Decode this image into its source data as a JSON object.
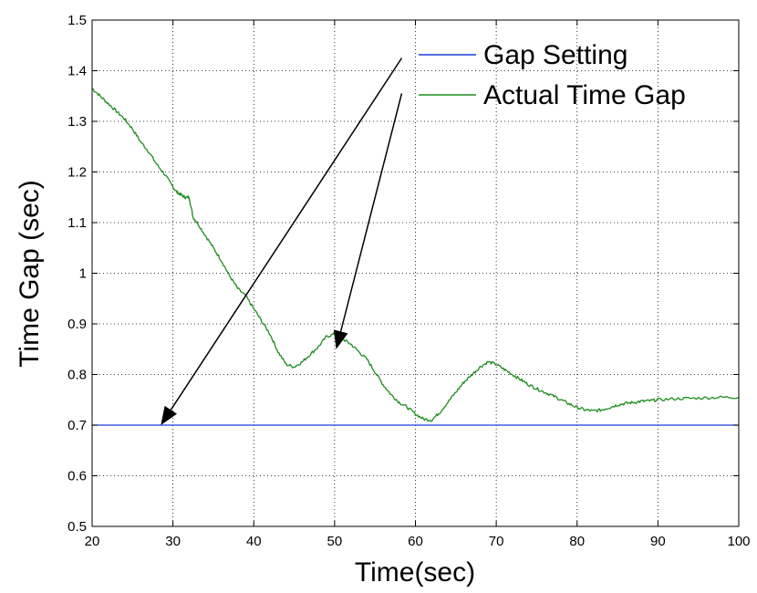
{
  "chart_data": {
    "type": "line",
    "title": "",
    "xlabel": "Time(sec)",
    "ylabel": "Time Gap (sec)",
    "xlim": [
      20,
      100
    ],
    "ylim": [
      0.5,
      1.5
    ],
    "xticks": [
      20,
      30,
      40,
      50,
      60,
      70,
      80,
      90,
      100
    ],
    "yticks": [
      0.5,
      0.6,
      0.7,
      0.8,
      0.9,
      1,
      1.1,
      1.2,
      1.3,
      1.4,
      1.5
    ],
    "ytick_labels": [
      "0.5",
      "0.6",
      "0.7",
      "0.8",
      "0.9",
      "1",
      "1.1",
      "1.2",
      "1.3",
      "1.4",
      "1.5"
    ],
    "xtick_labels": [
      "20",
      "30",
      "40",
      "50",
      "60",
      "70",
      "80",
      "90",
      "100"
    ],
    "grid": true,
    "grid_style": "dotted",
    "legend_position": "top-right",
    "series": [
      {
        "name": "Gap Setting",
        "color": "#1a3fd6",
        "x": [
          20,
          100
        ],
        "y": [
          0.7,
          0.7
        ]
      },
      {
        "name": "Actual Time Gap",
        "color": "#1f8c1f",
        "x": [
          20,
          21,
          22,
          23,
          24,
          25,
          26,
          27,
          28,
          29,
          30,
          30.5,
          31,
          31.5,
          32,
          32.5,
          33,
          34,
          35,
          36,
          37,
          38,
          39,
          40,
          41,
          42,
          43,
          44,
          45,
          46,
          47,
          48,
          49,
          50,
          51,
          52,
          53,
          54,
          55,
          56,
          57,
          58,
          59,
          60,
          61,
          62,
          63,
          64,
          65,
          66,
          67,
          68,
          69,
          70,
          71,
          72,
          73,
          74,
          75,
          76,
          77,
          78,
          79,
          80,
          81,
          82,
          83,
          84,
          85,
          86,
          87,
          88,
          89,
          90,
          92,
          94,
          96,
          98,
          100
        ],
        "y": [
          1.365,
          1.35,
          1.335,
          1.32,
          1.305,
          1.285,
          1.26,
          1.24,
          1.215,
          1.195,
          1.17,
          1.16,
          1.155,
          1.15,
          1.15,
          1.11,
          1.1,
          1.075,
          1.05,
          1.025,
          0.995,
          0.97,
          0.955,
          0.93,
          0.905,
          0.88,
          0.845,
          0.82,
          0.815,
          0.825,
          0.84,
          0.855,
          0.875,
          0.88,
          0.87,
          0.86,
          0.845,
          0.83,
          0.805,
          0.78,
          0.76,
          0.745,
          0.735,
          0.722,
          0.712,
          0.71,
          0.725,
          0.745,
          0.765,
          0.785,
          0.8,
          0.815,
          0.825,
          0.82,
          0.81,
          0.8,
          0.79,
          0.78,
          0.772,
          0.765,
          0.758,
          0.75,
          0.742,
          0.735,
          0.73,
          0.728,
          0.73,
          0.735,
          0.74,
          0.743,
          0.745,
          0.747,
          0.748,
          0.75,
          0.752,
          0.753,
          0.754,
          0.755,
          0.755
        ]
      }
    ],
    "annotations": [
      {
        "type": "arrow",
        "from": [
          58.3,
          1.425
        ],
        "to": [
          28.5,
          0.7
        ],
        "color": "#000000"
      },
      {
        "type": "arrow",
        "from": [
          58.3,
          1.355
        ],
        "to": [
          50.2,
          0.85
        ],
        "color": "#000000"
      }
    ]
  }
}
